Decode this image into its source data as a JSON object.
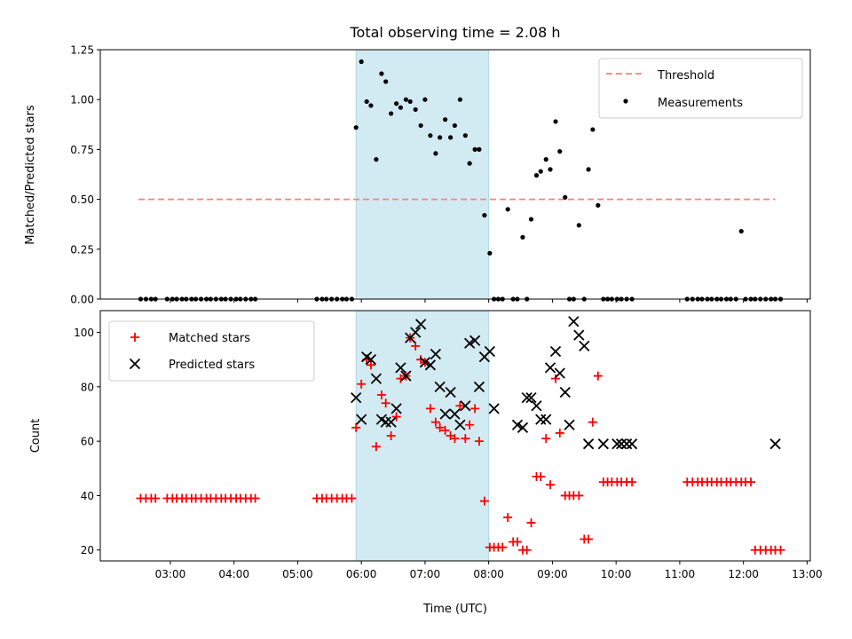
{
  "chart_data": [
    {
      "type": "scatter",
      "title": "Total observing time = 2.08 h",
      "ylabel": "Matched/Predicted stars",
      "ylim": [
        0,
        1.25
      ],
      "yticks": [
        "0.00",
        "0.25",
        "0.50",
        "0.75",
        "1.00",
        "1.25"
      ],
      "grid": false,
      "legend_placement": "top-right",
      "highlight_span": {
        "x": [
          "05:55",
          "08:00"
        ],
        "color": "#add8e6"
      },
      "series": [
        {
          "name": "Threshold",
          "style": "dashed-line",
          "color": "#ff7f7f",
          "x": [
            "02:30",
            "12:30"
          ],
          "y": [
            0.5,
            0.5
          ]
        },
        {
          "name": "Measurements",
          "style": "dot",
          "color": "#000000",
          "x": [
            "02:32",
            "02:37",
            "02:42",
            "02:46",
            "02:57",
            "03:02",
            "03:06",
            "03:11",
            "03:15",
            "03:20",
            "03:24",
            "03:29",
            "03:34",
            "03:38",
            "03:43",
            "03:48",
            "03:52",
            "03:57",
            "04:02",
            "04:06",
            "04:11",
            "04:16",
            "04:20",
            "05:18",
            "05:23",
            "05:27",
            "05:32",
            "05:37",
            "05:42",
            "05:46",
            "05:51",
            "05:55",
            "06:00",
            "06:05",
            "06:09",
            "06:14",
            "06:19",
            "06:23",
            "06:28",
            "06:33",
            "06:37",
            "06:42",
            "06:46",
            "06:51",
            "06:56",
            "07:00",
            "07:05",
            "07:10",
            "07:14",
            "07:19",
            "07:24",
            "07:28",
            "07:33",
            "07:38",
            "07:42",
            "07:47",
            "07:51",
            "07:56",
            "08:01",
            "08:05",
            "08:09",
            "08:13",
            "08:18",
            "08:23",
            "08:27",
            "08:32",
            "08:36",
            "08:40",
            "08:45",
            "08:49",
            "08:54",
            "08:58",
            "09:03",
            "09:07",
            "09:12",
            "09:16",
            "09:20",
            "09:25",
            "09:30",
            "09:34",
            "09:38",
            "09:43",
            "09:48",
            "09:52",
            "09:56",
            "10:01",
            "10:05",
            "10:10",
            "10:15",
            "11:07",
            "11:12",
            "11:17",
            "11:21",
            "11:26",
            "11:30",
            "11:35",
            "11:39",
            "11:44",
            "11:48",
            "11:53",
            "11:58",
            "12:02",
            "12:07",
            "12:11",
            "12:16",
            "12:21",
            "12:26",
            "12:30",
            "12:35"
          ],
          "y": [
            0,
            0,
            0,
            0,
            0,
            0,
            0,
            0,
            0,
            0,
            0,
            0,
            0,
            0,
            0,
            0,
            0,
            0,
            0,
            0,
            0,
            0,
            0,
            0,
            0,
            0,
            0,
            0,
            0,
            0,
            0,
            0.86,
            1.19,
            0.99,
            0.97,
            0.7,
            1.13,
            1.09,
            0.93,
            0.98,
            0.96,
            1.0,
            0.99,
            0.95,
            0.87,
            1.0,
            0.82,
            0.73,
            0.81,
            0.9,
            0.81,
            0.87,
            1.0,
            0.82,
            0.68,
            0.75,
            0.75,
            0.42,
            0.23,
            0,
            0,
            0,
            0.45,
            0,
            0,
            0.31,
            0,
            0.4,
            0.62,
            0.64,
            0.7,
            0.65,
            0.89,
            0.74,
            0.51,
            0,
            0,
            0.37,
            0,
            0.65,
            0.85,
            0.47,
            0,
            0,
            0,
            0,
            0,
            0,
            0,
            0,
            0,
            0,
            0,
            0,
            0,
            0,
            0,
            0,
            0,
            0,
            0.34,
            0,
            0,
            0,
            0,
            0,
            0,
            0,
            0
          ]
        }
      ]
    },
    {
      "type": "scatter",
      "xlabel": "Time (UTC)",
      "ylabel": "Count",
      "ylim": [
        16,
        108
      ],
      "yticks": [
        "20",
        "40",
        "60",
        "80",
        "100"
      ],
      "xticks": [
        "03:00",
        "04:00",
        "05:00",
        "06:00",
        "07:00",
        "08:00",
        "09:00",
        "10:00",
        "11:00",
        "12:00",
        "13:00"
      ],
      "grid": false,
      "legend_placement": "top-left",
      "highlight_span": {
        "x": [
          "05:55",
          "08:00"
        ],
        "color": "#add8e6"
      },
      "series": [
        {
          "name": "Matched stars",
          "style": "plus",
          "color": "#ff0000",
          "x": [
            "02:32",
            "02:37",
            "02:42",
            "02:46",
            "02:57",
            "03:02",
            "03:06",
            "03:11",
            "03:15",
            "03:20",
            "03:24",
            "03:29",
            "03:34",
            "03:38",
            "03:43",
            "03:48",
            "03:52",
            "03:57",
            "04:02",
            "04:06",
            "04:11",
            "04:16",
            "04:20",
            "05:18",
            "05:23",
            "05:27",
            "05:32",
            "05:37",
            "05:42",
            "05:46",
            "05:51",
            "05:55",
            "06:00",
            "06:05",
            "06:09",
            "06:14",
            "06:19",
            "06:23",
            "06:28",
            "06:33",
            "06:37",
            "06:42",
            "06:46",
            "06:51",
            "06:56",
            "07:00",
            "07:05",
            "07:10",
            "07:14",
            "07:19",
            "07:24",
            "07:28",
            "07:33",
            "07:38",
            "07:42",
            "07:47",
            "07:51",
            "07:56",
            "08:01",
            "08:05",
            "08:09",
            "08:13",
            "08:18",
            "08:23",
            "08:27",
            "08:32",
            "08:36",
            "08:40",
            "08:45",
            "08:49",
            "08:54",
            "08:58",
            "09:03",
            "09:07",
            "09:12",
            "09:16",
            "09:20",
            "09:25",
            "09:30",
            "09:34",
            "09:38",
            "09:43",
            "09:48",
            "09:52",
            "09:56",
            "10:01",
            "10:05",
            "10:10",
            "10:15",
            "11:07",
            "11:12",
            "11:17",
            "11:21",
            "11:26",
            "11:30",
            "11:35",
            "11:39",
            "11:44",
            "11:48",
            "11:53",
            "11:58",
            "12:02",
            "12:07",
            "12:11",
            "12:16",
            "12:21",
            "12:26",
            "12:30",
            "12:35"
          ],
          "y": [
            39,
            39,
            39,
            39,
            39,
            39,
            39,
            39,
            39,
            39,
            39,
            39,
            39,
            39,
            39,
            39,
            39,
            39,
            39,
            39,
            39,
            39,
            39,
            39,
            39,
            39,
            39,
            39,
            39,
            39,
            39,
            65,
            81,
            90,
            88,
            58,
            77,
            74,
            62,
            69,
            83,
            84,
            98,
            95,
            90,
            89,
            72,
            67,
            65,
            64,
            62,
            61,
            73,
            61,
            66,
            72,
            60,
            38,
            21,
            21,
            21,
            21,
            32,
            23,
            23,
            20,
            20,
            30,
            47,
            47,
            61,
            44,
            83,
            63,
            40,
            40,
            40,
            40,
            24,
            24,
            67,
            84,
            45,
            45,
            45,
            45,
            45,
            45,
            45,
            45,
            45,
            45,
            45,
            45,
            45,
            45,
            45,
            45,
            45,
            45,
            45,
            45,
            45,
            20,
            20,
            20,
            20,
            20,
            20
          ]
        },
        {
          "name": "Predicted stars",
          "style": "x",
          "color": "#000000",
          "x": [
            "05:55",
            "06:00",
            "06:05",
            "06:09",
            "06:14",
            "06:19",
            "06:23",
            "06:28",
            "06:33",
            "06:37",
            "06:42",
            "06:46",
            "06:51",
            "06:56",
            "07:00",
            "07:05",
            "07:10",
            "07:14",
            "07:19",
            "07:24",
            "07:28",
            "07:33",
            "07:38",
            "07:42",
            "07:47",
            "07:51",
            "07:56",
            "08:01",
            "08:05",
            "08:27",
            "08:32",
            "08:36",
            "08:40",
            "08:45",
            "08:49",
            "08:54",
            "08:58",
            "09:03",
            "09:07",
            "09:12",
            "09:16",
            "09:20",
            "09:25",
            "09:30",
            "09:34",
            "09:48",
            "10:01",
            "10:05",
            "10:10",
            "10:15",
            "12:30"
          ],
          "y": [
            76,
            68,
            91,
            90,
            83,
            68,
            67,
            67,
            72,
            87,
            84,
            98,
            100,
            103,
            89,
            88,
            92,
            80,
            70,
            78,
            70,
            66,
            73,
            96,
            97,
            80,
            91,
            93,
            72,
            66,
            65,
            76,
            76,
            73,
            68,
            68,
            87,
            93,
            85,
            78,
            66,
            104,
            99,
            95,
            59,
            59,
            59,
            59,
            59,
            59,
            59
          ]
        }
      ]
    }
  ]
}
